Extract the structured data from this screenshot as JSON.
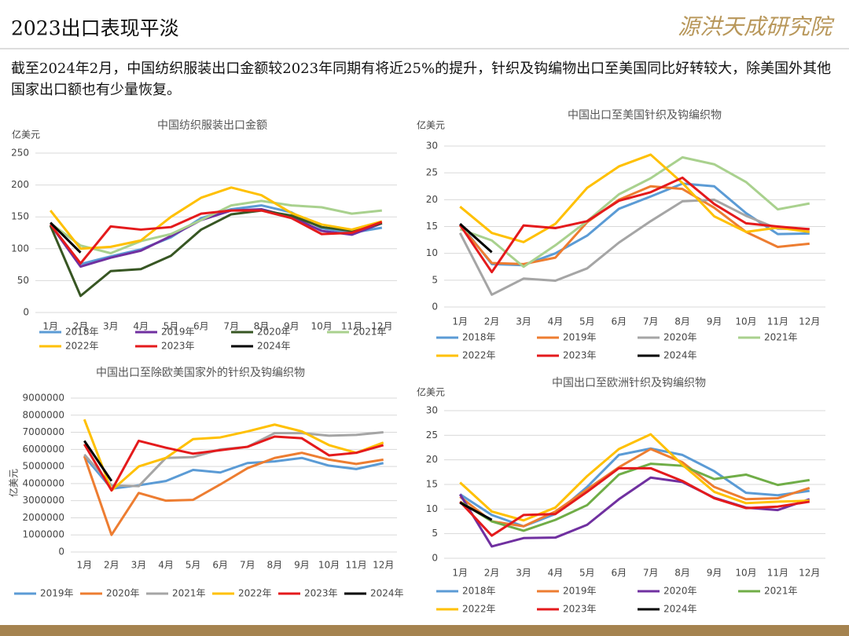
{
  "header": {
    "title": "2023出口表现平淡",
    "logo": "源洪天成研究院"
  },
  "description": "截至2024年2月，中国纺织服装出口金额较2023年同期有将近25%的提升，针织及钩编物出口至美国同比好转较大，除美国外其他国家出口额也有少量恢复。",
  "chart_data": [
    {
      "type": "line",
      "title": "中国纺织服装出口金额",
      "y_label": "亿美元",
      "grid": true,
      "categories": [
        "1月",
        "2月",
        "3月",
        "4月",
        "5月",
        "6月",
        "7月",
        "8月",
        "9月",
        "10月",
        "11月",
        "12月"
      ],
      "ylim": [
        0,
        250
      ],
      "yticks": [
        0,
        50,
        100,
        150,
        200,
        250
      ],
      "series": [
        {
          "name": "2018年",
          "color": "#5b9bd5",
          "values": [
            137,
            76,
            88,
            99,
            118,
            148,
            162,
            168,
            157,
            132,
            125,
            133
          ]
        },
        {
          "name": "2019年",
          "color": "#7030a0",
          "values": [
            138,
            72,
            86,
            97,
            120,
            145,
            160,
            162,
            150,
            128,
            122,
            140
          ]
        },
        {
          "name": "2020年",
          "color": "#375623",
          "values": [
            136,
            26,
            65,
            68,
            89,
            130,
            154,
            160,
            152,
            134,
            128,
            140
          ]
        },
        {
          "name": "2021年",
          "color": "#a9d18e",
          "values": [
            140,
            105,
            93,
            112,
            123,
            145,
            168,
            175,
            168,
            165,
            155,
            160
          ]
        },
        {
          "name": "2022年",
          "color": "#ffc000",
          "values": [
            160,
            100,
            103,
            113,
            150,
            180,
            196,
            184,
            156,
            138,
            130,
            143
          ]
        },
        {
          "name": "2023年",
          "color": "#e41a1c",
          "values": [
            138,
            77,
            135,
            130,
            134,
            155,
            160,
            160,
            148,
            123,
            125,
            142
          ]
        },
        {
          "name": "2024年",
          "color": "#000000",
          "values": [
            141,
            94,
            null,
            null,
            null,
            null,
            null,
            null,
            null,
            null,
            null,
            null
          ]
        }
      ]
    },
    {
      "type": "line",
      "title": "中国出口至美国针织及钩编织物",
      "y_label": "亿美元",
      "grid": true,
      "categories": [
        "1月",
        "2月",
        "3月",
        "4月",
        "5月",
        "6月",
        "7月",
        "8月",
        "9月",
        "10月",
        "11月",
        "12月"
      ],
      "ylim": [
        0,
        30
      ],
      "yticks": [
        0,
        5,
        10,
        15,
        20,
        25,
        30
      ],
      "series": [
        {
          "name": "2018年",
          "color": "#5b9bd5",
          "values": [
            15.5,
            8,
            7.8,
            10,
            13.3,
            18.3,
            20.6,
            23,
            22.5,
            17.5,
            13.6,
            13.7
          ]
        },
        {
          "name": "2019年",
          "color": "#ed7d31",
          "values": [
            15.2,
            8.2,
            8,
            9.2,
            15.8,
            20,
            22.5,
            22,
            18.5,
            14,
            11.2,
            11.8
          ]
        },
        {
          "name": "2020年",
          "color": "#a5a5a5",
          "values": [
            13.8,
            2.3,
            5.3,
            4.9,
            7.2,
            12,
            16,
            19.7,
            20,
            17,
            14.6,
            14.5
          ]
        },
        {
          "name": "2021年",
          "color": "#a9d18e",
          "values": [
            14.5,
            12.4,
            7.5,
            11.5,
            16,
            21,
            24,
            27.9,
            26.6,
            23.3,
            18.2,
            19.3
          ]
        },
        {
          "name": "2022年",
          "color": "#ffc000",
          "values": [
            18.7,
            13.8,
            12.1,
            15.5,
            22.2,
            26.2,
            28.4,
            23.1,
            16.9,
            14,
            14.8,
            14
          ]
        },
        {
          "name": "2023年",
          "color": "#e41a1c",
          "values": [
            15.3,
            6.5,
            15.2,
            14.7,
            16,
            19.8,
            21.4,
            24.1,
            19.2,
            15.6,
            15,
            14.5
          ]
        },
        {
          "name": "2024年",
          "color": "#000000",
          "values": [
            15.5,
            10.2,
            null,
            null,
            null,
            null,
            null,
            null,
            null,
            null,
            null,
            null
          ]
        }
      ]
    },
    {
      "type": "line",
      "title": "中国出口至除欧美国家外的针织及钩编织物",
      "y_label": "亿美元",
      "grid": true,
      "categories": [
        "1月",
        "2月",
        "3月",
        "4月",
        "5月",
        "6月",
        "7月",
        "8月",
        "9月",
        "10月",
        "11月",
        "12月"
      ],
      "ylim": [
        0,
        9000000
      ],
      "yticks": [
        0,
        1000000,
        2000000,
        3000000,
        4000000,
        5000000,
        6000000,
        7000000,
        8000000,
        9000000
      ],
      "series": [
        {
          "name": "2019年",
          "color": "#5b9bd5",
          "values": [
            5600000,
            3700000,
            3900000,
            4150000,
            4800000,
            4650000,
            5200000,
            5300000,
            5500000,
            5050000,
            4850000,
            5200000
          ]
        },
        {
          "name": "2020年",
          "color": "#ed7d31",
          "values": [
            5600000,
            1000000,
            3450000,
            3000000,
            3050000,
            3950000,
            4900000,
            5500000,
            5800000,
            5400000,
            5150000,
            5400000
          ]
        },
        {
          "name": "2021年",
          "color": "#a5a5a5",
          "values": [
            5700000,
            3900000,
            3850000,
            5500000,
            5550000,
            6000000,
            6150000,
            6950000,
            6950000,
            6800000,
            6850000,
            7000000
          ]
        },
        {
          "name": "2022年",
          "color": "#ffc000",
          "values": [
            7750000,
            3600000,
            5000000,
            5500000,
            6600000,
            6700000,
            7050000,
            7450000,
            7050000,
            6250000,
            5800000,
            6400000
          ]
        },
        {
          "name": "2023年",
          "color": "#e41a1c",
          "values": [
            6300000,
            3600000,
            6500000,
            6100000,
            5750000,
            5950000,
            6150000,
            6750000,
            6650000,
            5650000,
            5800000,
            6250000
          ]
        },
        {
          "name": "2024年",
          "color": "#000000",
          "values": [
            6500000,
            4150000,
            null,
            null,
            null,
            null,
            null,
            null,
            null,
            null,
            null,
            null
          ]
        }
      ]
    },
    {
      "type": "line",
      "title": "中国出口至欧洲针织及钩编织物",
      "y_label": "亿美元",
      "grid": true,
      "categories": [
        "1月",
        "2月",
        "3月",
        "4月",
        "5月",
        "6月",
        "7月",
        "8月",
        "9月",
        "10月",
        "11月",
        "12月"
      ],
      "ylim": [
        0,
        30
      ],
      "yticks": [
        0,
        5,
        10,
        15,
        20,
        25,
        30
      ],
      "series": [
        {
          "name": "2018年",
          "color": "#5b9bd5",
          "values": [
            13,
            8.8,
            6.5,
            9,
            14.5,
            21,
            22.3,
            21,
            17.7,
            13.3,
            12.8,
            13.7
          ]
        },
        {
          "name": "2019年",
          "color": "#ed7d31",
          "values": [
            12.5,
            7.5,
            6.5,
            9.5,
            14,
            18.5,
            22.2,
            19.5,
            14.5,
            12,
            12.2,
            14.3
          ]
        },
        {
          "name": "2020年",
          "color": "#7030a0",
          "values": [
            13,
            2.4,
            4.1,
            4.2,
            6.8,
            12,
            16.4,
            15.5,
            12.3,
            10.3,
            9.8,
            12
          ]
        },
        {
          "name": "2021年",
          "color": "#70ad47",
          "values": [
            11.5,
            7.5,
            5.6,
            7.8,
            10.8,
            17,
            19.2,
            18.8,
            16.1,
            17,
            14.9,
            15.9
          ]
        },
        {
          "name": "2022年",
          "color": "#ffc000",
          "values": [
            15.4,
            9.5,
            7.7,
            10.3,
            16.7,
            22.2,
            25.2,
            19,
            13.5,
            11.2,
            11.5,
            11.7
          ]
        },
        {
          "name": "2023年",
          "color": "#e41a1c",
          "values": [
            11.5,
            4.6,
            8.8,
            9,
            13.5,
            18.3,
            18.3,
            15.7,
            12.2,
            10.2,
            10.5,
            11.5
          ]
        },
        {
          "name": "2024年",
          "color": "#000000",
          "values": [
            11.3,
            7.8,
            null,
            null,
            null,
            null,
            null,
            null,
            null,
            null,
            null,
            null
          ]
        }
      ]
    }
  ]
}
